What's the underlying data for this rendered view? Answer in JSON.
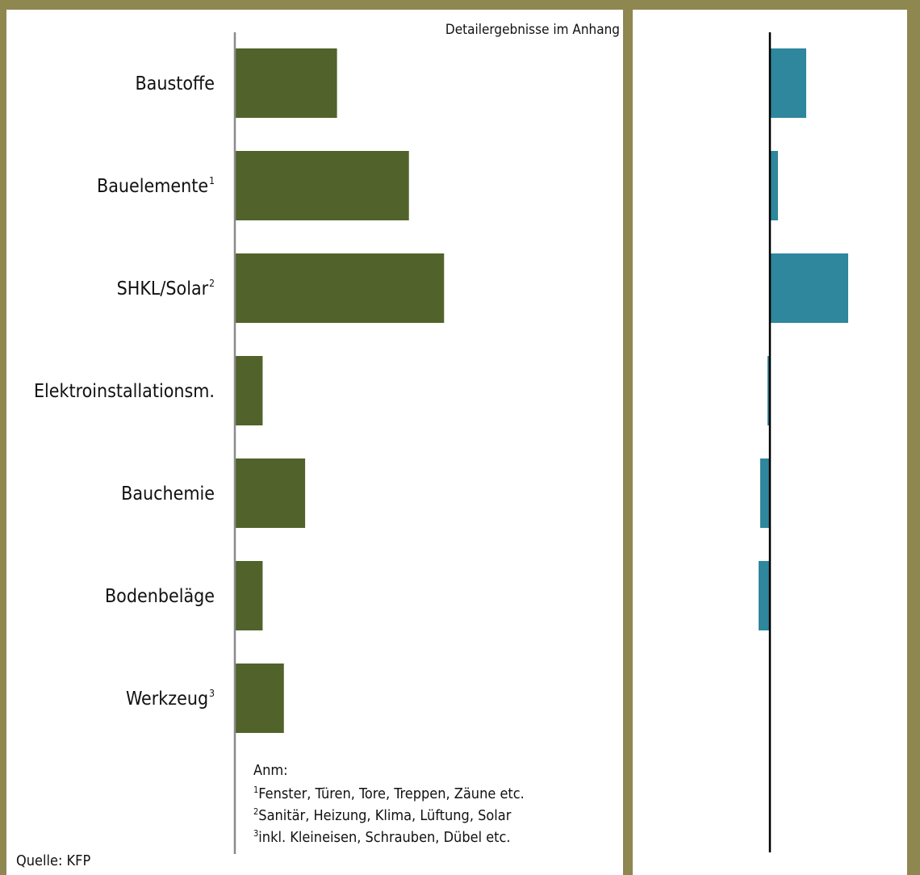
{
  "header_note": "Detailergebnisse im Anhang",
  "source": "Quelle: KFP",
  "notes": {
    "title": "Anm:",
    "items": [
      {
        "mark": "1",
        "text": "Fenster, Türen, Tore, Treppen, Zäune etc."
      },
      {
        "mark": "2",
        "text": "Sanitär, Heizung, Klima, Lüftung, Solar"
      },
      {
        "mark": "3",
        "text": "inkl. Kleineisen, Schrauben, Dübel etc."
      }
    ]
  },
  "colors": {
    "left_bars": "#51632a",
    "right_bars": "#2e879c",
    "frame": "#8f8750",
    "left_axis": "#8a8a8a",
    "right_axis": "#000000"
  },
  "chart_data": [
    {
      "type": "bar",
      "orientation": "horizontal",
      "categories": [
        "Baustoffe",
        "Bauelemente",
        "SHKL/Solar",
        "Elektroinstallationsm.",
        "Bauchemie",
        "Bodenbeläge",
        "Werkzeug"
      ],
      "category_footnotes": [
        "",
        "1",
        "2",
        "",
        "",
        "",
        "3"
      ],
      "values": [
        125,
        213,
        256,
        34,
        86,
        34,
        60
      ],
      "xlim": [
        0,
        470
      ],
      "grid": false
    },
    {
      "type": "bar",
      "orientation": "horizontal",
      "categories": [
        "Baustoffe",
        "Bauelemente",
        "SHKL/Solar",
        "Elektroinstallationsm.",
        "Bauchemie",
        "Bodenbeläge",
        "Werkzeug"
      ],
      "values": [
        45,
        10,
        97,
        -3,
        -12,
        -14,
        0
      ],
      "xlim": [
        -170,
        170
      ],
      "grid": false
    }
  ]
}
